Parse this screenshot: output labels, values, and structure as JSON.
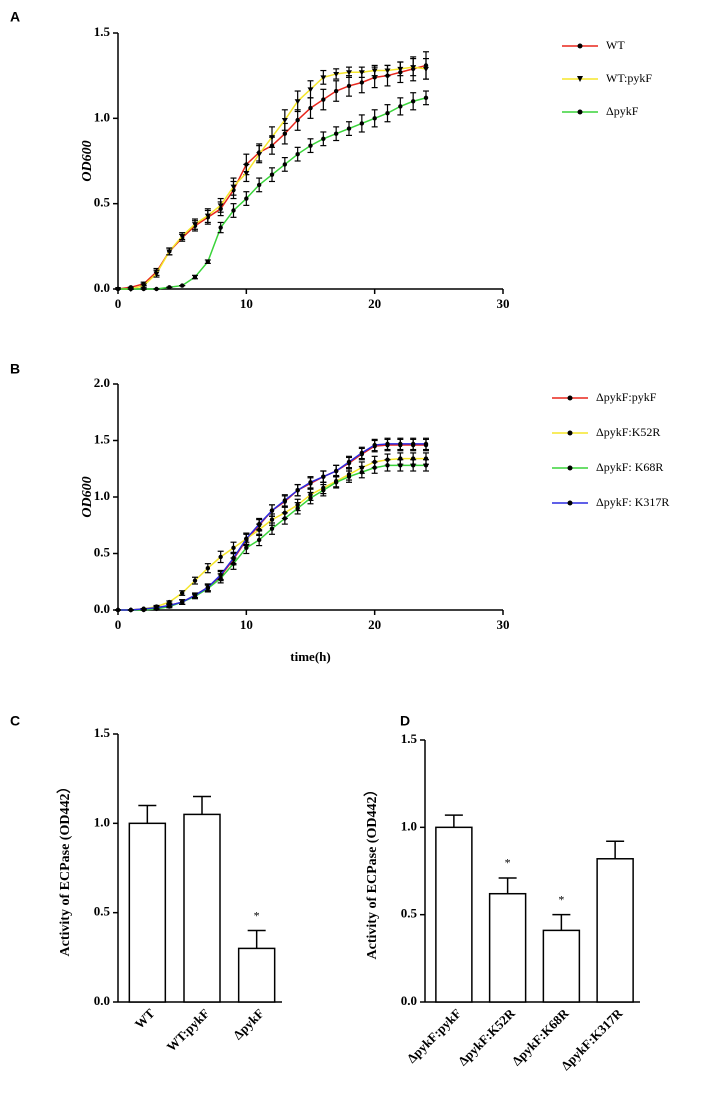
{
  "chart_data": [
    {
      "type": "line",
      "panel": "A",
      "ylabel": "OD600",
      "legend": "right",
      "x": [
        0,
        1,
        2,
        3,
        4,
        5,
        6,
        7,
        8,
        9,
        10,
        11,
        12,
        13,
        14,
        15,
        16,
        17,
        18,
        19,
        20,
        21,
        22,
        23,
        24
      ],
      "xlim": [
        0,
        30
      ],
      "xticks": [
        0,
        10,
        20,
        30
      ],
      "ylim": [
        0,
        1.5
      ],
      "yticks": [
        {
          "value": 0,
          "label": "0.0"
        },
        0.5,
        {
          "value": 1,
          "label": "1.0"
        },
        1.5
      ],
      "series": [
        {
          "name": "WT",
          "color": "#e8261c",
          "marker": "circle",
          "values": [
            0,
            0.01,
            0.03,
            0.1,
            0.22,
            0.3,
            0.37,
            0.42,
            0.47,
            0.58,
            0.73,
            0.8,
            0.84,
            0.91,
            0.99,
            1.06,
            1.11,
            1.16,
            1.19,
            1.21,
            1.24,
            1.25,
            1.27,
            1.29,
            1.31
          ],
          "errors": [
            0,
            0,
            0.01,
            0.02,
            0.02,
            0.02,
            0.03,
            0.04,
            0.04,
            0.05,
            0.06,
            0.05,
            0.05,
            0.06,
            0.06,
            0.06,
            0.06,
            0.06,
            0.06,
            0.06,
            0.06,
            0.06,
            0.06,
            0.07,
            0.08
          ]
        },
        {
          "name": "WT:pykF",
          "color": "#f5e62a",
          "marker": "triangle",
          "values": [
            0,
            0,
            0.02,
            0.09,
            0.22,
            0.31,
            0.38,
            0.43,
            0.49,
            0.6,
            0.68,
            0.79,
            0.89,
            0.99,
            1.1,
            1.17,
            1.24,
            1.26,
            1.27,
            1.27,
            1.28,
            1.28,
            1.29,
            1.3,
            1.29
          ],
          "errors": [
            0,
            0,
            0.01,
            0.02,
            0.02,
            0.02,
            0.03,
            0.04,
            0.04,
            0.05,
            0.05,
            0.05,
            0.06,
            0.06,
            0.06,
            0.05,
            0.04,
            0.03,
            0.03,
            0.03,
            0.03,
            0.03,
            0.04,
            0.05,
            0.06
          ]
        },
        {
          "name": "ΔpykF",
          "color": "#3ad43a",
          "marker": "circle",
          "values": [
            0,
            0,
            0,
            0,
            0.01,
            0.02,
            0.07,
            0.16,
            0.36,
            0.46,
            0.53,
            0.61,
            0.67,
            0.73,
            0.79,
            0.84,
            0.88,
            0.91,
            0.94,
            0.97,
            1.0,
            1.03,
            1.07,
            1.1,
            1.12
          ],
          "errors": [
            0,
            0,
            0,
            0,
            0,
            0,
            0.01,
            0.01,
            0.03,
            0.04,
            0.04,
            0.04,
            0.04,
            0.04,
            0.04,
            0.04,
            0.04,
            0.04,
            0.04,
            0.05,
            0.05,
            0.05,
            0.05,
            0.05,
            0.04
          ]
        }
      ]
    },
    {
      "type": "line",
      "panel": "B",
      "ylabel": "OD600",
      "xlabel": "time(h)",
      "legend": "right",
      "x": [
        0,
        1,
        2,
        3,
        4,
        5,
        6,
        7,
        8,
        9,
        10,
        11,
        12,
        13,
        14,
        15,
        16,
        17,
        18,
        19,
        20,
        21,
        22,
        23,
        24
      ],
      "xlim": [
        0,
        30
      ],
      "xticks": [
        0,
        10,
        20,
        30
      ],
      "ylim": [
        0,
        2
      ],
      "yticks": [
        {
          "value": 0,
          "label": "0.0"
        },
        0.5,
        {
          "value": 1,
          "label": "1.0"
        },
        1.5,
        {
          "value": 2,
          "label": "2.0"
        }
      ],
      "series": [
        {
          "name": "ΔpykF:pykF",
          "color": "#e8261c",
          "marker": "circle",
          "values": [
            0,
            0,
            0.01,
            0.02,
            0.04,
            0.07,
            0.13,
            0.2,
            0.3,
            0.45,
            0.62,
            0.75,
            0.88,
            0.96,
            1.06,
            1.12,
            1.18,
            1.23,
            1.3,
            1.38,
            1.45,
            1.46,
            1.46,
            1.46,
            1.46
          ],
          "errors": [
            0,
            0,
            0,
            0.01,
            0.01,
            0.02,
            0.02,
            0.03,
            0.04,
            0.05,
            0.05,
            0.05,
            0.05,
            0.05,
            0.05,
            0.05,
            0.05,
            0.05,
            0.05,
            0.05,
            0.05,
            0.05,
            0.05,
            0.05,
            0.05
          ]
        },
        {
          "name": "ΔpykF:K52R",
          "color": "#f5e62a",
          "marker": "circle",
          "values": [
            0,
            0,
            0.01,
            0.03,
            0.07,
            0.15,
            0.26,
            0.37,
            0.47,
            0.55,
            0.63,
            0.71,
            0.8,
            0.86,
            0.93,
            1.02,
            1.08,
            1.14,
            1.2,
            1.26,
            1.31,
            1.33,
            1.34,
            1.34,
            1.34
          ],
          "errors": [
            0,
            0,
            0,
            0.01,
            0.01,
            0.02,
            0.03,
            0.04,
            0.05,
            0.05,
            0.05,
            0.05,
            0.05,
            0.05,
            0.05,
            0.05,
            0.05,
            0.05,
            0.05,
            0.05,
            0.05,
            0.05,
            0.05,
            0.05,
            0.05
          ]
        },
        {
          "name": "ΔpykF: K68R",
          "color": "#3ad43a",
          "marker": "circle",
          "values": [
            0,
            0,
            0,
            0.01,
            0.03,
            0.07,
            0.12,
            0.19,
            0.28,
            0.41,
            0.55,
            0.62,
            0.72,
            0.81,
            0.9,
            0.99,
            1.06,
            1.13,
            1.18,
            1.22,
            1.26,
            1.28,
            1.28,
            1.28,
            1.28
          ],
          "errors": [
            0,
            0,
            0,
            0.01,
            0.01,
            0.02,
            0.02,
            0.03,
            0.04,
            0.05,
            0.05,
            0.05,
            0.05,
            0.05,
            0.05,
            0.05,
            0.05,
            0.05,
            0.05,
            0.05,
            0.05,
            0.05,
            0.05,
            0.05,
            0.05
          ]
        },
        {
          "name": "ΔpykF:  K317R",
          "color": "#2b2be0",
          "marker": "circle",
          "values": [
            0,
            0,
            0.01,
            0.02,
            0.04,
            0.07,
            0.13,
            0.2,
            0.31,
            0.46,
            0.63,
            0.76,
            0.88,
            0.97,
            1.06,
            1.13,
            1.18,
            1.23,
            1.31,
            1.39,
            1.46,
            1.47,
            1.47,
            1.47,
            1.47
          ],
          "errors": [
            0,
            0,
            0,
            0.01,
            0.01,
            0.02,
            0.02,
            0.03,
            0.04,
            0.05,
            0.05,
            0.05,
            0.05,
            0.05,
            0.05,
            0.05,
            0.05,
            0.05,
            0.05,
            0.05,
            0.05,
            0.05,
            0.05,
            0.05,
            0.05
          ]
        }
      ]
    },
    {
      "type": "bar",
      "panel": "C",
      "ylabel": "Activity of ECPase (OD442）",
      "categories": [
        "WT",
        "WT:pykF",
        "ΔpykF"
      ],
      "values": [
        1.0,
        1.05,
        0.3
      ],
      "errors": [
        0.1,
        0.1,
        0.1
      ],
      "significance": [
        null,
        null,
        "*"
      ],
      "color": "#ffffff",
      "ylim": [
        0,
        1.5
      ],
      "yticks": [
        {
          "value": 0,
          "label": "0.0"
        },
        0.5,
        {
          "value": 1,
          "label": "1.0"
        },
        1.5
      ]
    },
    {
      "type": "bar",
      "panel": "D",
      "ylabel": "Activity of ECPase (OD442）",
      "categories": [
        "ΔpykF:pykF",
        "ΔpykF:K52R",
        "ΔpykF:K68R",
        "ΔpykF:K317R"
      ],
      "values": [
        1.0,
        0.62,
        0.41,
        0.82
      ],
      "errors": [
        0.07,
        0.09,
        0.09,
        0.1
      ],
      "significance": [
        null,
        "*",
        "*",
        null
      ],
      "color": "#ffffff",
      "ylim": [
        0,
        1.5
      ],
      "yticks": [
        {
          "value": 0,
          "label": "0.0"
        },
        0.5,
        {
          "value": 1,
          "label": "1.0"
        },
        1.5
      ]
    }
  ]
}
